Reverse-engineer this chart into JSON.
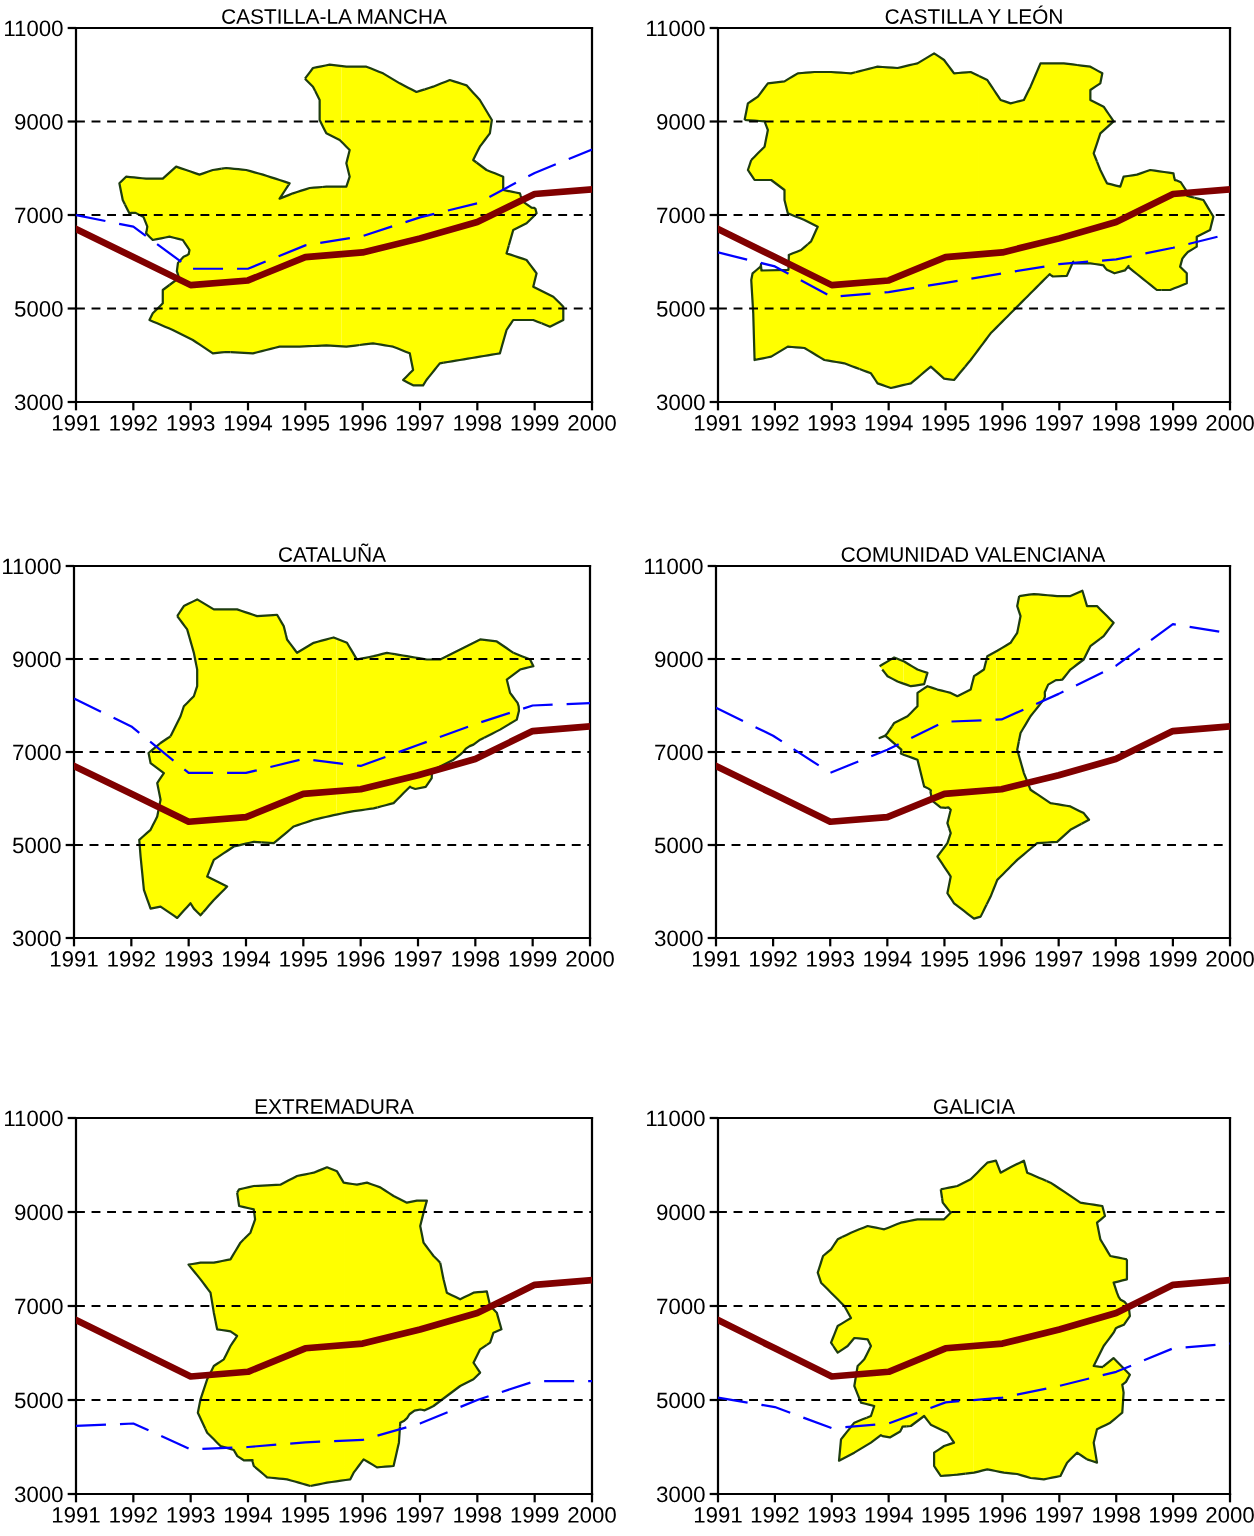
{
  "chart_data": [
    {
      "type": "line",
      "title": "CASTILLA-LA MANCHA",
      "x": [
        1991,
        1992,
        1993,
        1994,
        1995,
        1996,
        1997,
        1998,
        1999,
        2000
      ],
      "xlim": [
        1991,
        2000
      ],
      "xticks": [
        1991,
        1992,
        1993,
        1994,
        1995,
        1996,
        1997,
        1998,
        1999,
        2000
      ],
      "ylim": [
        3000,
        11000
      ],
      "yticks": [
        3000,
        5000,
        7000,
        9000,
        11000
      ],
      "grid": "y",
      "series": [
        {
          "color": "#800000",
          "line_style": "solid",
          "values": [
            6700,
            6100,
            5500,
            5600,
            6100,
            6200,
            6500,
            6850,
            7450,
            7550
          ]
        },
        {
          "color": "#0000ff",
          "line_style": "dashed",
          "values": [
            7000,
            6750,
            5850,
            5850,
            6350,
            6550,
            6950,
            7250,
            7900,
            8400
          ]
        }
      ]
    },
    {
      "type": "line",
      "title": "CASTILLA Y LEÓN",
      "x": [
        1991,
        1992,
        1993,
        1994,
        1995,
        1996,
        1997,
        1998,
        1999,
        2000
      ],
      "xlim": [
        1991,
        2000
      ],
      "xticks": [
        1991,
        1992,
        1993,
        1994,
        1995,
        1996,
        1997,
        1998,
        1999,
        2000
      ],
      "ylim": [
        3000,
        11000
      ],
      "yticks": [
        3000,
        5000,
        7000,
        9000,
        11000
      ],
      "grid": "y",
      "series": [
        {
          "color": "#800000",
          "line_style": "solid",
          "values": [
            6700,
            6100,
            5500,
            5600,
            6100,
            6200,
            6500,
            6850,
            7450,
            7550
          ]
        },
        {
          "color": "#0000ff",
          "line_style": "dashed",
          "values": [
            6200,
            5900,
            5250,
            5350,
            5550,
            5750,
            5950,
            6050,
            6300,
            6600
          ]
        }
      ]
    },
    {
      "type": "line",
      "title": "CATALUÑA",
      "x": [
        1991,
        1992,
        1993,
        1994,
        1995,
        1996,
        1997,
        1998,
        1999,
        2000
      ],
      "xlim": [
        1991,
        2000
      ],
      "xticks": [
        1991,
        1992,
        1993,
        1994,
        1995,
        1996,
        1997,
        1998,
        1999,
        2000
      ],
      "ylim": [
        3000,
        11000
      ],
      "yticks": [
        3000,
        5000,
        7000,
        9000,
        11000
      ],
      "grid": "y",
      "series": [
        {
          "color": "#800000",
          "line_style": "solid",
          "values": [
            6700,
            6100,
            5500,
            5600,
            6100,
            6200,
            6500,
            6850,
            7450,
            7550
          ]
        },
        {
          "color": "#0000ff",
          "line_style": "dashed",
          "values": [
            8150,
            7550,
            6550,
            6550,
            6850,
            6700,
            7150,
            7600,
            8000,
            8050
          ]
        }
      ]
    },
    {
      "type": "line",
      "title": "COMUNIDAD VALENCIANA",
      "x": [
        1991,
        1992,
        1993,
        1994,
        1995,
        1996,
        1997,
        1998,
        1999,
        2000
      ],
      "xlim": [
        1991,
        2000
      ],
      "xticks": [
        1991,
        1992,
        1993,
        1994,
        1995,
        1996,
        1997,
        1998,
        1999,
        2000
      ],
      "ylim": [
        3000,
        11000
      ],
      "yticks": [
        3000,
        5000,
        7000,
        9000,
        11000
      ],
      "grid": "y",
      "series": [
        {
          "color": "#800000",
          "line_style": "solid",
          "values": [
            6700,
            6100,
            5500,
            5600,
            6100,
            6200,
            6500,
            6850,
            7450,
            7550
          ]
        },
        {
          "color": "#0000ff",
          "line_style": "dashed",
          "values": [
            7950,
            7350,
            6550,
            7050,
            7650,
            7700,
            8250,
            8850,
            9750,
            9550
          ]
        }
      ]
    },
    {
      "type": "line",
      "title": "EXTREMADURA",
      "x": [
        1991,
        1992,
        1993,
        1994,
        1995,
        1996,
        1997,
        1998,
        1999,
        2000
      ],
      "xlim": [
        1991,
        2000
      ],
      "xticks": [
        1991,
        1992,
        1993,
        1994,
        1995,
        1996,
        1997,
        1998,
        1999,
        2000
      ],
      "ylim": [
        3000,
        11000
      ],
      "yticks": [
        3000,
        5000,
        7000,
        9000,
        11000
      ],
      "grid": "y",
      "series": [
        {
          "color": "#800000",
          "line_style": "solid",
          "values": [
            6700,
            6100,
            5500,
            5600,
            6100,
            6200,
            6500,
            6850,
            7450,
            7550
          ]
        },
        {
          "color": "#0000ff",
          "line_style": "dashed",
          "values": [
            4450,
            4500,
            3950,
            4000,
            4100,
            4150,
            4500,
            5000,
            5400,
            5400
          ]
        }
      ]
    },
    {
      "type": "line",
      "title": "GALICIA",
      "x": [
        1991,
        1992,
        1993,
        1994,
        1995,
        1996,
        1997,
        1998,
        1999,
        2000
      ],
      "xlim": [
        1991,
        2000
      ],
      "xticks": [
        1991,
        1992,
        1993,
        1994,
        1995,
        1996,
        1997,
        1998,
        1999,
        2000
      ],
      "ylim": [
        3000,
        11000
      ],
      "yticks": [
        3000,
        5000,
        7000,
        9000,
        11000
      ],
      "grid": "y",
      "series": [
        {
          "color": "#800000",
          "line_style": "solid",
          "values": [
            6700,
            6100,
            5500,
            5600,
            6100,
            6200,
            6500,
            6850,
            7450,
            7550
          ]
        },
        {
          "color": "#0000ff",
          "line_style": "dashed",
          "values": [
            5050,
            4850,
            4400,
            4500,
            4950,
            5050,
            5300,
            5600,
            6100,
            6200
          ]
        }
      ]
    }
  ]
}
